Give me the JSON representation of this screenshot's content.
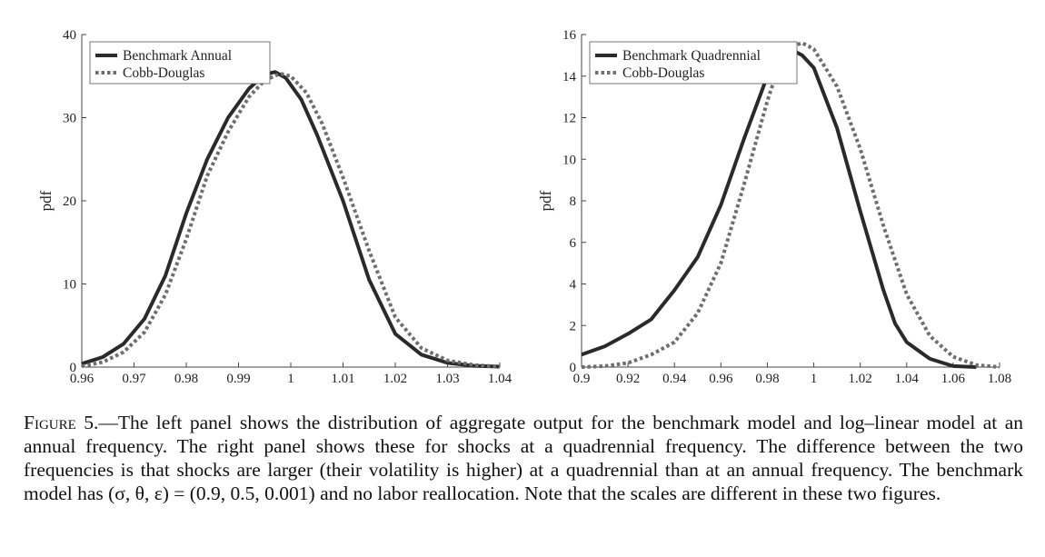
{
  "colors": {
    "benchmark": "#2a2a2a",
    "cobb": "#6e6e6e",
    "axis": "#444444"
  },
  "chart_data": [
    {
      "type": "line",
      "title": "",
      "xlabel": "",
      "ylabel": "pdf",
      "xlim": [
        0.96,
        1.04
      ],
      "ylim": [
        0,
        40
      ],
      "xticks": [
        "0.96",
        "0.97",
        "0.98",
        "0.99",
        "1",
        "1.01",
        "1.02",
        "1.03",
        "1.04"
      ],
      "xtick_values": [
        0.96,
        0.97,
        0.98,
        0.99,
        1.0,
        1.01,
        1.02,
        1.03,
        1.04
      ],
      "yticks": [
        "0",
        "10",
        "20",
        "30",
        "40"
      ],
      "ytick_values": [
        0,
        10,
        20,
        30,
        40
      ],
      "legend_position": "top-left",
      "grid": false,
      "series": [
        {
          "name": "Benchmark Annual",
          "style": "solid",
          "x": [
            0.96,
            0.964,
            0.968,
            0.972,
            0.976,
            0.98,
            0.984,
            0.988,
            0.992,
            0.995,
            0.997,
            0.999,
            1.002,
            1.005,
            1.01,
            1.015,
            1.02,
            1.025,
            1.03,
            1.035,
            1.04
          ],
          "y": [
            0.4,
            1.2,
            2.8,
            5.8,
            11.0,
            18.5,
            25.0,
            30.0,
            33.5,
            35.2,
            35.5,
            34.8,
            32.2,
            28.0,
            20.0,
            10.5,
            4.0,
            1.5,
            0.5,
            0.15,
            0.05
          ]
        },
        {
          "name": "Cobb-Douglas",
          "style": "dotted",
          "x": [
            0.96,
            0.964,
            0.968,
            0.972,
            0.976,
            0.98,
            0.984,
            0.988,
            0.992,
            0.995,
            0.998,
            1.0,
            1.003,
            1.006,
            1.01,
            1.015,
            1.02,
            1.025,
            1.03,
            1.035,
            1.04
          ],
          "y": [
            0.1,
            0.6,
            1.8,
            4.2,
            8.7,
            15.4,
            23.0,
            28.3,
            32.5,
            34.5,
            35.3,
            35.0,
            33.0,
            29.3,
            22.8,
            14.0,
            6.0,
            2.3,
            0.8,
            0.25,
            0.05
          ]
        }
      ]
    },
    {
      "type": "line",
      "title": "",
      "xlabel": "",
      "ylabel": "pdf",
      "xlim": [
        0.9,
        1.08
      ],
      "ylim": [
        0,
        16
      ],
      "xticks": [
        "0.9",
        "0.92",
        "0.94",
        "0.96",
        "0.98",
        "1",
        "1.02",
        "1.04",
        "1.06",
        "1.08"
      ],
      "xtick_values": [
        0.9,
        0.92,
        0.94,
        0.96,
        0.98,
        1.0,
        1.02,
        1.04,
        1.06,
        1.08
      ],
      "yticks": [
        "0",
        "2",
        "4",
        "6",
        "8",
        "10",
        "12",
        "14",
        "16"
      ],
      "ytick_values": [
        0,
        2,
        4,
        6,
        8,
        10,
        12,
        14,
        16
      ],
      "legend_position": "top-left",
      "grid": false,
      "series": [
        {
          "name": "Benchmark Quadrennial",
          "style": "solid",
          "x": [
            0.9,
            0.91,
            0.92,
            0.93,
            0.935,
            0.94,
            0.945,
            0.95,
            0.96,
            0.97,
            0.98,
            0.985,
            0.99,
            0.995,
            1.0,
            1.01,
            1.02,
            1.03,
            1.035,
            1.04,
            1.05,
            1.06,
            1.07
          ],
          "y": [
            0.6,
            1.0,
            1.6,
            2.3,
            3.0,
            3.7,
            4.5,
            5.3,
            7.8,
            11.0,
            14.0,
            15.0,
            15.3,
            15.0,
            14.4,
            11.5,
            7.5,
            3.7,
            2.1,
            1.2,
            0.4,
            0.05,
            0.0
          ]
        },
        {
          "name": "Cobb-Douglas",
          "style": "dotted",
          "x": [
            0.9,
            0.91,
            0.92,
            0.93,
            0.94,
            0.95,
            0.96,
            0.97,
            0.98,
            0.985,
            0.99,
            0.995,
            1.0,
            1.01,
            1.02,
            1.03,
            1.04,
            1.05,
            1.06,
            1.07,
            1.08
          ],
          "y": [
            0.0,
            0.05,
            0.2,
            0.6,
            1.2,
            2.6,
            5.0,
            8.8,
            12.8,
            14.5,
            15.4,
            15.6,
            15.3,
            13.5,
            10.5,
            6.8,
            3.5,
            1.5,
            0.5,
            0.1,
            0.0
          ]
        }
      ]
    }
  ],
  "caption": {
    "label": "Figure 5.",
    "text": "—The left panel shows the distribution of aggregate output for the benchmark model and log–linear model at an annual frequency. The right panel shows these for shocks at a quadrennial frequency. The difference between the two frequencies is that shocks are larger (their volatility is higher) at a quadrennial than at an annual frequency. The benchmark model has (σ, θ, ε) = (0.9, 0.5, 0.001) and no labor reallocation. Note that the scales are different in these two figures."
  }
}
